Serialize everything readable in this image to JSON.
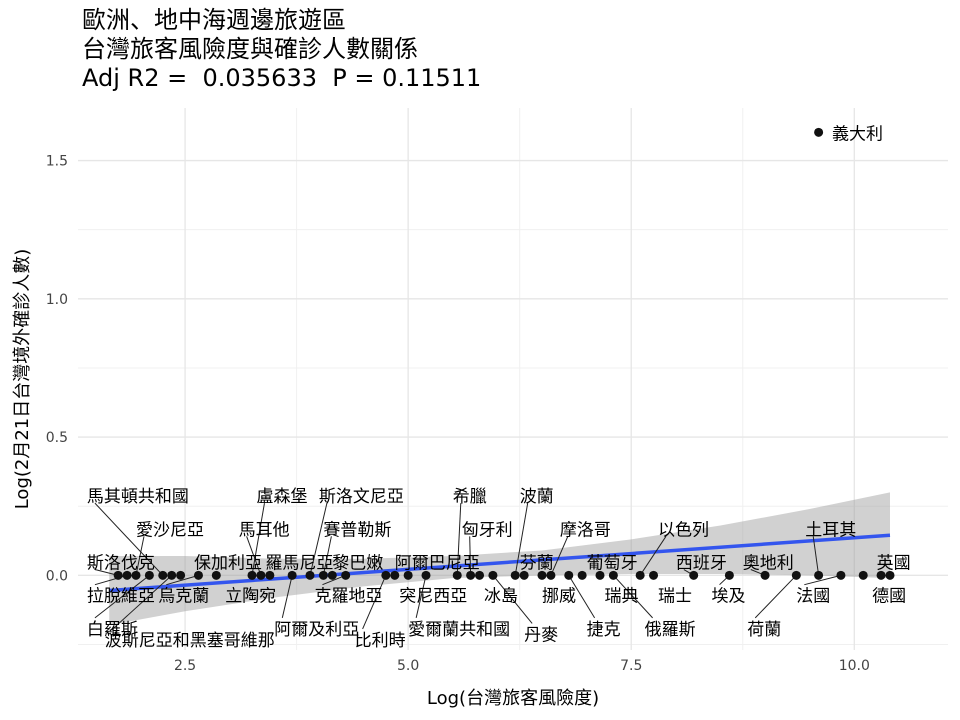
{
  "title_lines": [
    "歐洲、地中海週邊旅遊區",
    "台灣旅客風險度與確診人數關係",
    "Adj R2 =  0.035633  P = 0.11511"
  ],
  "chart_data": {
    "type": "scatter",
    "xlabel": "Log(台灣旅客風險度)",
    "ylabel": "Log(2月21日台灣境外確診人數)",
    "xlim": [
      1.3,
      11.05
    ],
    "ylim": [
      -0.27,
      1.69
    ],
    "x_ticks": [
      2.5,
      5.0,
      7.5,
      10.0
    ],
    "x_tick_labels": [
      "2.5",
      "5.0",
      "7.5",
      "10.0"
    ],
    "y_ticks": [
      0.0,
      0.5,
      1.0,
      1.5
    ],
    "y_tick_labels": [
      "0.0",
      "0.5",
      "1.0",
      "1.5"
    ],
    "grid": true,
    "regression_line": {
      "x": [
        1.65,
        10.4
      ],
      "y": [
        -0.055,
        0.145
      ],
      "color": "#3355ee"
    },
    "confidence_band": {
      "x": [
        1.65,
        2.5,
        3.5,
        4.5,
        5.5,
        6.5,
        7.5,
        8.5,
        9.5,
        10.4
      ],
      "lower": [
        -0.18,
        -0.13,
        -0.08,
        -0.04,
        -0.01,
        0.0,
        0.005,
        0.005,
        0.0,
        -0.01
      ],
      "upper": [
        0.07,
        0.07,
        0.06,
        0.06,
        0.07,
        0.09,
        0.13,
        0.18,
        0.24,
        0.3
      ],
      "color": "#999999"
    },
    "points": [
      {
        "x": 1.75,
        "y": 0,
        "label": "斯洛伐克",
        "lx": 1.4,
        "ly": 0.05
      },
      {
        "x": 1.85,
        "y": 0,
        "label": "拉脫維亞",
        "lx": 1.4,
        "ly": -0.07
      },
      {
        "x": 1.95,
        "y": 0,
        "label": "愛沙尼亞",
        "lx": 1.95,
        "ly": 0.17
      },
      {
        "x": 2.1,
        "y": 0,
        "label": "白羅斯",
        "lx": 1.4,
        "ly": -0.19
      },
      {
        "x": 2.25,
        "y": 0,
        "label": "馬其頓共和國",
        "lx": 1.4,
        "ly": 0.29
      },
      {
        "x": 2.35,
        "y": 0,
        "label": "波斯尼亞和黑塞哥維那",
        "lx": 1.6,
        "ly": -0.23
      },
      {
        "x": 2.45,
        "y": 0,
        "label": "保加利亞",
        "lx": 2.6,
        "ly": 0.05
      },
      {
        "x": 2.65,
        "y": 0,
        "label": "烏克蘭",
        "lx": 2.2,
        "ly": -0.07
      },
      {
        "x": 2.85,
        "y": 0,
        "label": "立陶宛",
        "lx": 2.95,
        "ly": -0.07
      },
      {
        "x": 3.25,
        "y": 0,
        "label": "盧森堡",
        "lx": 3.3,
        "ly": 0.29
      },
      {
        "x": 3.35,
        "y": 0,
        "label": "馬耳他",
        "lx": 3.1,
        "ly": 0.17
      },
      {
        "x": 3.45,
        "y": 0,
        "label": "羅馬尼亞",
        "lx": 3.4,
        "ly": 0.05
      },
      {
        "x": 3.7,
        "y": 0,
        "label": "阿爾及利亞",
        "lx": 3.5,
        "ly": -0.19
      },
      {
        "x": 3.9,
        "y": 0,
        "label": "斯洛文尼亞",
        "lx": 4.0,
        "ly": 0.29
      },
      {
        "x": 4.05,
        "y": 0,
        "label": "賽普勒斯",
        "lx": 4.05,
        "ly": 0.17
      },
      {
        "x": 4.15,
        "y": 0,
        "label": "黎巴嫩",
        "lx": 4.15,
        "ly": 0.05
      },
      {
        "x": 4.3,
        "y": 0,
        "label": "克羅地亞",
        "lx": 3.95,
        "ly": -0.07
      },
      {
        "x": 4.75,
        "y": 0,
        "label": "比利時",
        "lx": 4.4,
        "ly": -0.23
      },
      {
        "x": 4.85,
        "y": 0,
        "label": "阿爾巴尼亞",
        "lx": 4.85,
        "ly": 0.05
      },
      {
        "x": 5.0,
        "y": 0,
        "label": "突尼西亞",
        "lx": 4.9,
        "ly": -0.07
      },
      {
        "x": 5.2,
        "y": 0,
        "label": "愛爾蘭共和國",
        "lx": 5.0,
        "ly": -0.19
      },
      {
        "x": 5.55,
        "y": 0,
        "label": "希臘",
        "lx": 5.5,
        "ly": 0.29
      },
      {
        "x": 5.7,
        "y": 0,
        "label": "匈牙利",
        "lx": 5.6,
        "ly": 0.17
      },
      {
        "x": 5.8,
        "y": 0,
        "label": "冰島",
        "lx": 5.85,
        "ly": -0.07
      },
      {
        "x": 5.95,
        "y": 0,
        "label": "丹麥",
        "lx": 6.3,
        "ly": -0.21
      },
      {
        "x": 6.2,
        "y": 0,
        "label": "波蘭",
        "lx": 6.25,
        "ly": 0.29
      },
      {
        "x": 6.3,
        "y": 0,
        "label": "芬蘭",
        "lx": 6.25,
        "ly": 0.05
      },
      {
        "x": 6.5,
        "y": 0,
        "label": "挪威",
        "lx": 6.5,
        "ly": -0.07
      },
      {
        "x": 6.6,
        "y": 0,
        "label": "摩洛哥",
        "lx": 6.7,
        "ly": 0.17
      },
      {
        "x": 6.8,
        "y": 0,
        "label": "捷克",
        "lx": 7.0,
        "ly": -0.19
      },
      {
        "x": 6.95,
        "y": 0,
        "label": "葡萄牙",
        "lx": 7.0,
        "ly": 0.05
      },
      {
        "x": 7.15,
        "y": 0,
        "label": "瑞典",
        "lx": 7.2,
        "ly": -0.07
      },
      {
        "x": 7.3,
        "y": 0,
        "label": "俄羅斯",
        "lx": 7.65,
        "ly": -0.19
      },
      {
        "x": 7.6,
        "y": 0,
        "label": "以色列",
        "lx": 7.8,
        "ly": 0.17
      },
      {
        "x": 7.75,
        "y": 0,
        "label": "瑞士",
        "lx": 7.8,
        "ly": -0.07
      },
      {
        "x": 8.2,
        "y": 0,
        "label": "西班牙",
        "lx": 8.0,
        "ly": 0.05
      },
      {
        "x": 8.6,
        "y": 0,
        "label": "埃及",
        "lx": 8.4,
        "ly": -0.07
      },
      {
        "x": 9.0,
        "y": 0,
        "label": "奧地利",
        "lx": 8.75,
        "ly": 0.05
      },
      {
        "x": 9.35,
        "y": 0,
        "label": "荷蘭",
        "lx": 8.8,
        "ly": -0.19
      },
      {
        "x": 9.6,
        "y": 0,
        "label": "土耳其",
        "lx": 9.45,
        "ly": 0.17
      },
      {
        "x": 9.85,
        "y": 0,
        "label": "法國",
        "lx": 9.35,
        "ly": -0.07
      },
      {
        "x": 10.1,
        "y": 0,
        "label": "德國",
        "lx": 10.2,
        "ly": -0.07
      },
      {
        "x": 10.3,
        "y": 0,
        "label": "英國",
        "lx": 10.25,
        "ly": 0.05
      },
      {
        "x": 10.4,
        "y": 0,
        "label": "",
        "lx": 10.4,
        "ly": 0
      },
      {
        "x": 9.6,
        "y": 1.602,
        "label": "義大利",
        "lx": 9.75,
        "ly": 1.602
      }
    ]
  }
}
